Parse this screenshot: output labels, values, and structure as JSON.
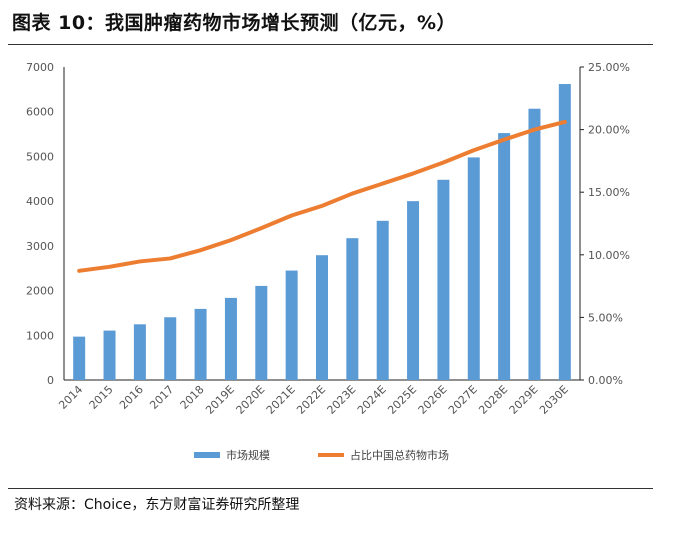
{
  "title": "图表 10：我国肿瘤药物市场增长预测（亿元，%）",
  "source": "资料来源：Choice，东方财富证券研究所整理",
  "chart_data": {
    "type": "bar+line",
    "categories": [
      "2014",
      "2015",
      "2016",
      "2017",
      "2018",
      "2019E",
      "2020E",
      "2021E",
      "2022E",
      "2023E",
      "2024E",
      "2025E",
      "2026E",
      "2027E",
      "2028E",
      "2029E",
      "2030E"
    ],
    "series": [
      {
        "name": "市场规模",
        "type": "bar",
        "axis": "left",
        "color": "#5B9BD5",
        "values": [
          970,
          1105,
          1246,
          1403,
          1590,
          1836,
          2104,
          2448,
          2791,
          3172,
          3560,
          4000,
          4478,
          4978,
          5522,
          6067,
          6619
        ]
      },
      {
        "name": "占比中国总药物市场",
        "type": "line",
        "axis": "right",
        "color": "#ED7D31",
        "values": [
          8.72,
          9.04,
          9.47,
          9.71,
          10.37,
          11.17,
          12.13,
          13.14,
          13.91,
          14.89,
          15.69,
          16.49,
          17.37,
          18.35,
          19.2,
          20.0,
          20.61
        ]
      }
    ],
    "y_left": {
      "range": [
        0,
        7000
      ],
      "ticks": [
        "0",
        "1000",
        "2000",
        "3000",
        "4000",
        "5000",
        "6000",
        "7000"
      ]
    },
    "y_right": {
      "range": [
        0,
        25
      ],
      "ticks": [
        "0.00%",
        "5.00%",
        "10.00%",
        "15.00%",
        "20.00%",
        "25.00%"
      ]
    },
    "grid": false,
    "legend": "bottom"
  }
}
